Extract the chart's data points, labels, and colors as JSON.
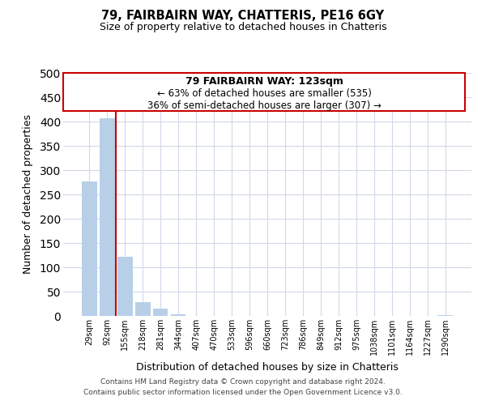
{
  "title": "79, FAIRBAIRN WAY, CHATTERIS, PE16 6GY",
  "subtitle": "Size of property relative to detached houses in Chatteris",
  "xlabel": "Distribution of detached houses by size in Chatteris",
  "ylabel": "Number of detached properties",
  "bar_labels": [
    "29sqm",
    "92sqm",
    "155sqm",
    "218sqm",
    "281sqm",
    "344sqm",
    "407sqm",
    "470sqm",
    "533sqm",
    "596sqm",
    "660sqm",
    "723sqm",
    "786sqm",
    "849sqm",
    "912sqm",
    "975sqm",
    "1038sqm",
    "1101sqm",
    "1164sqm",
    "1227sqm",
    "1290sqm"
  ],
  "bar_values": [
    277,
    406,
    122,
    29,
    15,
    4,
    0,
    0,
    0,
    0,
    0,
    0,
    0,
    0,
    0,
    0,
    0,
    0,
    0,
    0,
    2
  ],
  "bar_color": "#b8cfe8",
  "marker_color": "#cc0000",
  "annotation_title": "79 FAIRBAIRN WAY: 123sqm",
  "annotation_line1": "← 63% of detached houses are smaller (535)",
  "annotation_line2": "36% of semi-detached houses are larger (307) →",
  "annotation_box_color": "#ffffff",
  "annotation_box_edge": "#cc0000",
  "ylim": [
    0,
    500
  ],
  "yticks": [
    0,
    50,
    100,
    150,
    200,
    250,
    300,
    350,
    400,
    450,
    500
  ],
  "footer1": "Contains HM Land Registry data © Crown copyright and database right 2024.",
  "footer2": "Contains public sector information licensed under the Open Government Licence v3.0.",
  "bg_color": "#ffffff",
  "grid_color": "#d0d8e8"
}
